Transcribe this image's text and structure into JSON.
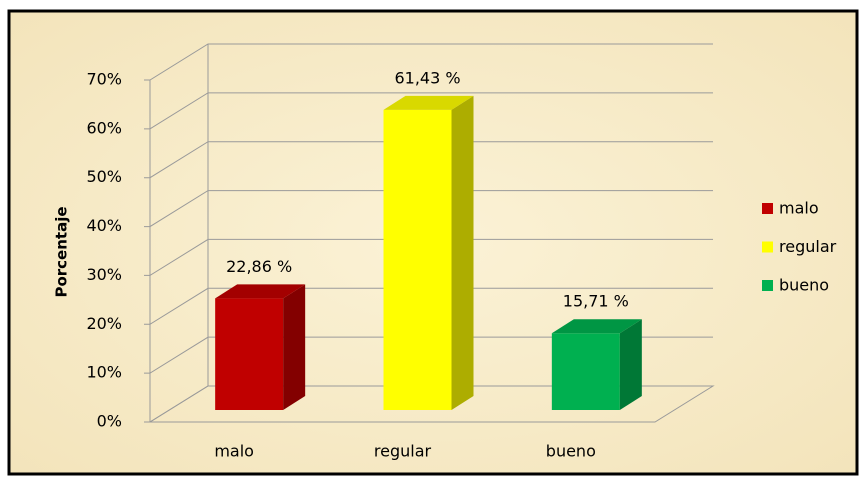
{
  "chart_data": {
    "type": "bar3d",
    "y_label": "Porcentaje",
    "categories": [
      "malo",
      "regular",
      "bueno"
    ],
    "values": [
      22.86,
      61.43,
      15.71
    ],
    "value_labels": [
      "22,86 %",
      "61,43 %",
      "15,71 %"
    ],
    "colors": [
      "#c00000",
      "#ffff00",
      "#00b050"
    ],
    "ylim": [
      0,
      70
    ],
    "yticks": [
      {
        "value": 0,
        "label": "0%"
      },
      {
        "value": 10,
        "label": "10%"
      },
      {
        "value": 20,
        "label": "20%"
      },
      {
        "value": 30,
        "label": "30%"
      },
      {
        "value": 40,
        "label": "40%"
      },
      {
        "value": 50,
        "label": "50%"
      },
      {
        "value": 60,
        "label": "60%"
      },
      {
        "value": 70,
        "label": "70%"
      }
    ],
    "grid": true,
    "legend": "right"
  }
}
